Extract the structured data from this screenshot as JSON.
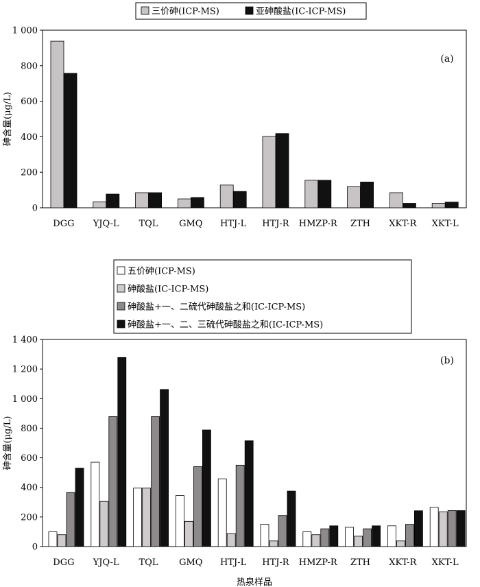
{
  "chart_data": [
    {
      "type": "bar",
      "panel_label": "(a)",
      "ylabel": "砷含量(μg/L)",
      "xlabel": "",
      "ylim": [
        0,
        1000
      ],
      "yticks": [
        "0",
        "200",
        "400",
        "600",
        "800",
        "1 000"
      ],
      "ytick_values": [
        0,
        200,
        400,
        600,
        800,
        1000
      ],
      "categories": [
        "DGG",
        "YJQ-L",
        "TQL",
        "GMQ",
        "HTJ-L",
        "HTJ-R",
        "HMZP-R",
        "ZTH",
        "XKT-R",
        "XKT-L"
      ],
      "legend_position": "top-center",
      "grid": false,
      "series": [
        {
          "name": "三价砷(ICP-MS)",
          "color": "#c8c4c5",
          "values": [
            938,
            34,
            85,
            50,
            128,
            402,
            155,
            120,
            85,
            25
          ]
        },
        {
          "name": "亚砷酸盐(IC-ICP-MS)",
          "color": "#111111",
          "values": [
            757,
            77,
            85,
            58,
            92,
            418,
            155,
            145,
            25,
            32
          ]
        }
      ]
    },
    {
      "type": "bar",
      "panel_label": "(b)",
      "ylabel": "砷含量(μg/L)",
      "xlabel": "热泉样品",
      "ylim": [
        0,
        1400
      ],
      "yticks": [
        "0",
        "200",
        "400",
        "600",
        "800",
        "1 000",
        "1 200",
        "1 400"
      ],
      "ytick_values": [
        0,
        200,
        400,
        600,
        800,
        1000,
        1200,
        1400
      ],
      "categories": [
        "DGG",
        "YJQ-L",
        "TQL",
        "GMQ",
        "HTJ-L",
        "HTJ-R",
        "HMZP-R",
        "ZTH",
        "XKT-R",
        "XKT-L"
      ],
      "legend_position": "top",
      "grid": false,
      "series": [
        {
          "name": "五价砷(ICP-MS)",
          "color": "#ffffff",
          "values": [
            100,
            570,
            395,
            345,
            458,
            150,
            100,
            130,
            140,
            265
          ]
        },
        {
          "name": "砷酸盐(IC-ICP-MS)",
          "color": "#cfcbcc",
          "values": [
            80,
            305,
            395,
            170,
            88,
            38,
            80,
            70,
            38,
            235
          ]
        },
        {
          "name": "砷酸盐+一、二硫代砷酸盐之和(IC-ICP-MS)",
          "color": "#8e8a8b",
          "values": [
            365,
            878,
            878,
            540,
            550,
            210,
            120,
            120,
            150,
            243
          ]
        },
        {
          "name": "砷酸盐+一、二、三硫代砷酸盐之和(IC-ICP-MS)",
          "color": "#111111",
          "values": [
            530,
            1278,
            1062,
            788,
            715,
            375,
            140,
            140,
            242,
            243
          ]
        }
      ]
    }
  ]
}
